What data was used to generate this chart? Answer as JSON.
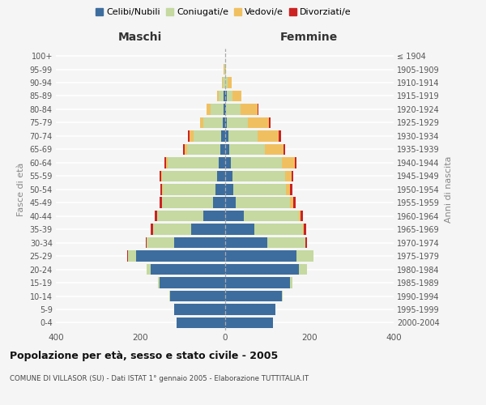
{
  "age_groups": [
    "0-4",
    "5-9",
    "10-14",
    "15-19",
    "20-24",
    "25-29",
    "30-34",
    "35-39",
    "40-44",
    "45-49",
    "50-54",
    "55-59",
    "60-64",
    "65-69",
    "70-74",
    "75-79",
    "80-84",
    "85-89",
    "90-94",
    "95-99",
    "100+"
  ],
  "birth_years": [
    "2000-2004",
    "1995-1999",
    "1990-1994",
    "1985-1989",
    "1980-1984",
    "1975-1979",
    "1970-1974",
    "1965-1969",
    "1960-1964",
    "1955-1959",
    "1950-1954",
    "1945-1949",
    "1940-1944",
    "1935-1939",
    "1930-1934",
    "1925-1929",
    "1920-1924",
    "1915-1919",
    "1910-1914",
    "1905-1909",
    "≤ 1904"
  ],
  "maschi": {
    "celibi": [
      115,
      120,
      130,
      155,
      175,
      210,
      120,
      80,
      50,
      28,
      22,
      18,
      15,
      10,
      8,
      5,
      3,
      2,
      0,
      0,
      0
    ],
    "coniugati": [
      0,
      0,
      1,
      3,
      10,
      20,
      65,
      90,
      110,
      120,
      125,
      130,
      120,
      80,
      65,
      45,
      30,
      12,
      4,
      1,
      0
    ],
    "vedovi": [
      0,
      0,
      0,
      0,
      0,
      0,
      0,
      0,
      1,
      1,
      2,
      3,
      4,
      5,
      10,
      8,
      10,
      5,
      2,
      1,
      0
    ],
    "divorziati": [
      0,
      0,
      0,
      0,
      0,
      1,
      3,
      5,
      4,
      5,
      4,
      4,
      4,
      3,
      4,
      1,
      1,
      0,
      0,
      0,
      0
    ]
  },
  "femmine": {
    "nubili": [
      115,
      120,
      135,
      155,
      175,
      170,
      100,
      70,
      45,
      25,
      20,
      18,
      15,
      10,
      8,
      5,
      3,
      4,
      1,
      0,
      0
    ],
    "coniugate": [
      0,
      0,
      2,
      5,
      20,
      40,
      90,
      115,
      130,
      130,
      125,
      125,
      120,
      85,
      70,
      50,
      35,
      15,
      5,
      1,
      0
    ],
    "vedove": [
      0,
      0,
      0,
      0,
      0,
      0,
      1,
      3,
      5,
      8,
      10,
      15,
      30,
      45,
      50,
      50,
      40,
      20,
      10,
      2,
      0
    ],
    "divorziate": [
      0,
      0,
      0,
      0,
      0,
      1,
      4,
      5,
      5,
      5,
      5,
      5,
      5,
      3,
      5,
      4,
      2,
      0,
      0,
      0,
      0
    ]
  },
  "colors": {
    "celibi_nubili": "#3d6d9e",
    "coniugati": "#c5d9a0",
    "vedovi": "#f0c060",
    "divorziati": "#cc2222"
  },
  "xlim": 400,
  "title": "Popolazione per età, sesso e stato civile - 2005",
  "subtitle": "COMUNE DI VILLASOR (SU) - Dati ISTAT 1° gennaio 2005 - Elaborazione TUTTITALIA.IT",
  "ylabel_left": "Fasce di età",
  "ylabel_right": "Anni di nascita",
  "xlabel_maschi": "Maschi",
  "xlabel_femmine": "Femmine",
  "bg_color": "#f5f5f5",
  "bar_height": 0.82
}
